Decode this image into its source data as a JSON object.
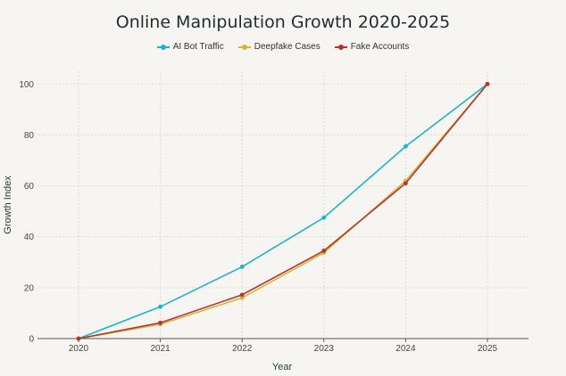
{
  "chart_data": {
    "type": "line",
    "title": "Online Manipulation Growth 2020-2025",
    "xlabel": "Year",
    "ylabel": "Growth Index",
    "categories": [
      "2020",
      "2021",
      "2022",
      "2023",
      "2024",
      "2025"
    ],
    "ylim": [
      0,
      105
    ],
    "yticks": [
      0,
      20,
      40,
      60,
      80,
      100
    ],
    "grid": true,
    "legend_position": "top-center",
    "series": [
      {
        "name": "AI Bot Traffic",
        "color": "#1fb3c8",
        "values": [
          0,
          12.5,
          28.2,
          47.5,
          75.5,
          100
        ]
      },
      {
        "name": "Deepfake Cases",
        "color": "#d8b43a",
        "values": [
          0,
          5.6,
          16,
          33.7,
          62,
          100
        ]
      },
      {
        "name": "Fake Accounts",
        "color": "#b3362e",
        "values": [
          0,
          6.2,
          17.2,
          34.5,
          61,
          100
        ]
      }
    ]
  }
}
